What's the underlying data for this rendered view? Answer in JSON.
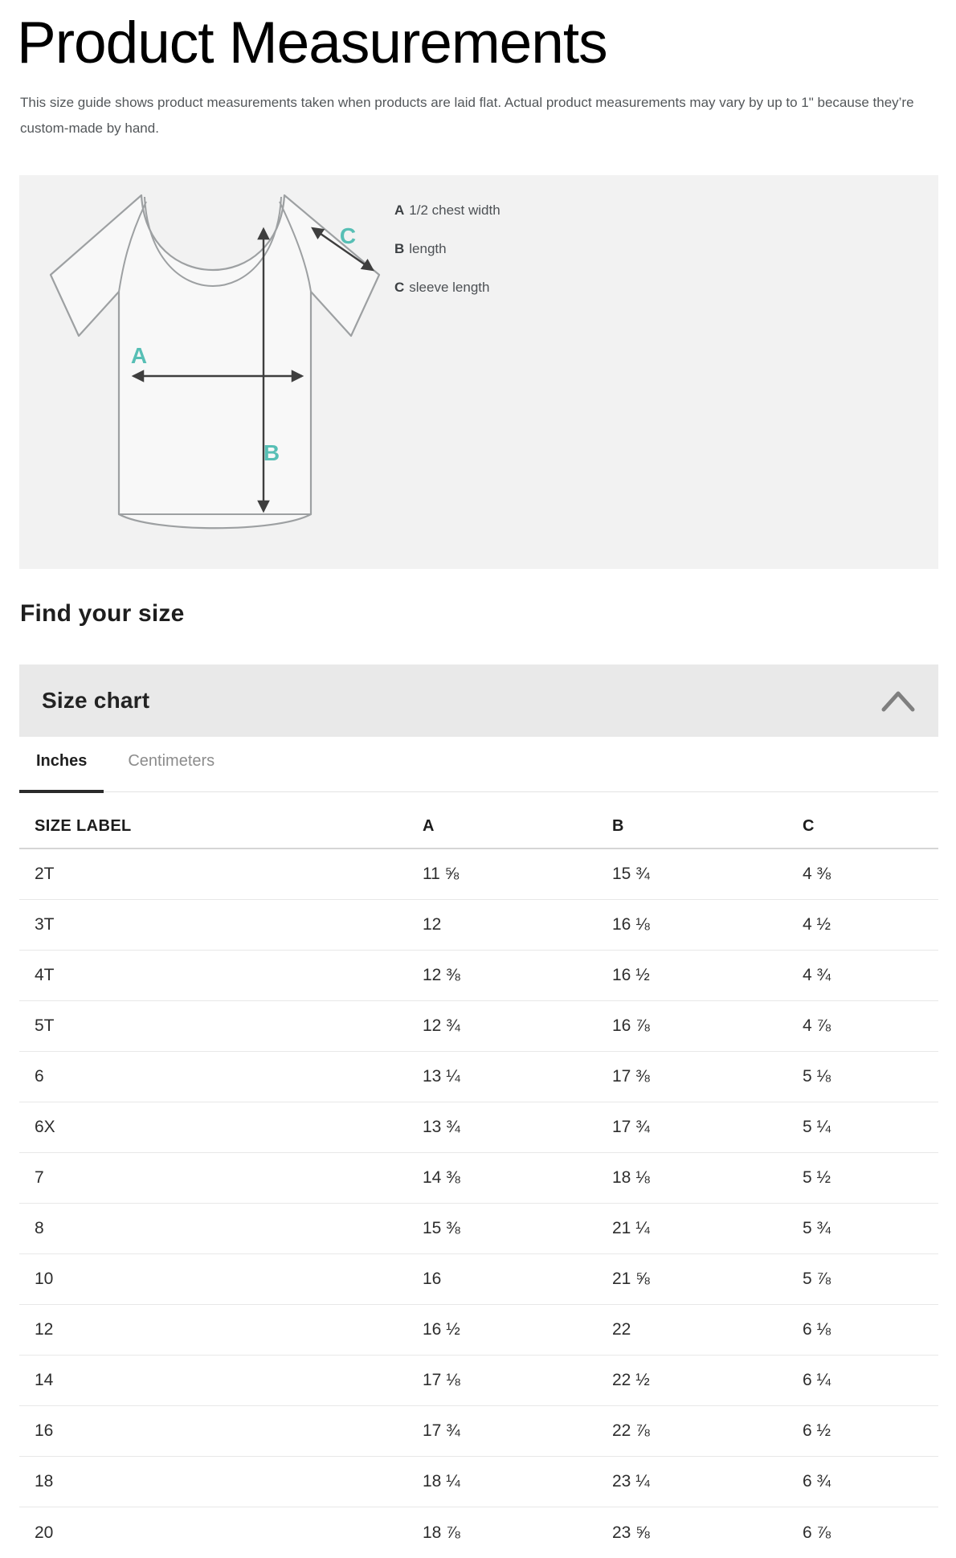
{
  "page": {
    "title": "Product Measurements",
    "subtitle": "This size guide shows product measurements taken when products are laid flat. Actual product measurements may vary by up to 1\" because they’re custom-made by hand."
  },
  "diagram": {
    "markers": {
      "a": "A",
      "b": "B",
      "c": "C"
    },
    "legend": [
      {
        "key": "A",
        "text": "1/2 chest width"
      },
      {
        "key": "B",
        "text": "length"
      },
      {
        "key": "C",
        "text": "sleeve length"
      }
    ],
    "accent_color": "#57bfb5",
    "arrow_color": "#3e3e3e"
  },
  "find_your_size": "Find your size",
  "size_chart": {
    "header": "Size chart",
    "collapse_icon": "chevron-up",
    "tabs": [
      {
        "label": "Inches",
        "active": true
      },
      {
        "label": "Centimeters",
        "active": false
      }
    ],
    "table": {
      "columns": [
        "SIZE LABEL",
        "A",
        "B",
        "C"
      ],
      "rows": [
        {
          "label": "2T",
          "a": "11 ⅝",
          "b": "15 ¾",
          "c": "4 ⅜"
        },
        {
          "label": "3T",
          "a": "12",
          "b": "16 ⅛",
          "c": "4 ½"
        },
        {
          "label": "4T",
          "a": "12 ⅜",
          "b": "16 ½",
          "c": "4 ¾"
        },
        {
          "label": "5T",
          "a": "12 ¾",
          "b": "16 ⅞",
          "c": "4 ⅞"
        },
        {
          "label": "6",
          "a": "13 ¼",
          "b": "17 ⅜",
          "c": "5 ⅛"
        },
        {
          "label": "6X",
          "a": "13 ¾",
          "b": "17 ¾",
          "c": "5 ¼"
        },
        {
          "label": "7",
          "a": "14 ⅜",
          "b": "18 ⅛",
          "c": "5 ½"
        },
        {
          "label": "8",
          "a": "15 ⅜",
          "b": "21 ¼",
          "c": "5 ¾"
        },
        {
          "label": "10",
          "a": "16",
          "b": "21 ⅝",
          "c": "5 ⅞"
        },
        {
          "label": "12",
          "a": "16 ½",
          "b": "22",
          "c": "6 ⅛"
        },
        {
          "label": "14",
          "a": "17 ⅛",
          "b": "22 ½",
          "c": "6 ¼"
        },
        {
          "label": "16",
          "a": "17 ¾",
          "b": "22 ⅞",
          "c": "6 ½"
        },
        {
          "label": "18",
          "a": "18 ¼",
          "b": "23 ¼",
          "c": "6 ¾"
        },
        {
          "label": "20",
          "a": "18 ⅞",
          "b": "23 ⅝",
          "c": "6 ⅞"
        }
      ]
    }
  }
}
